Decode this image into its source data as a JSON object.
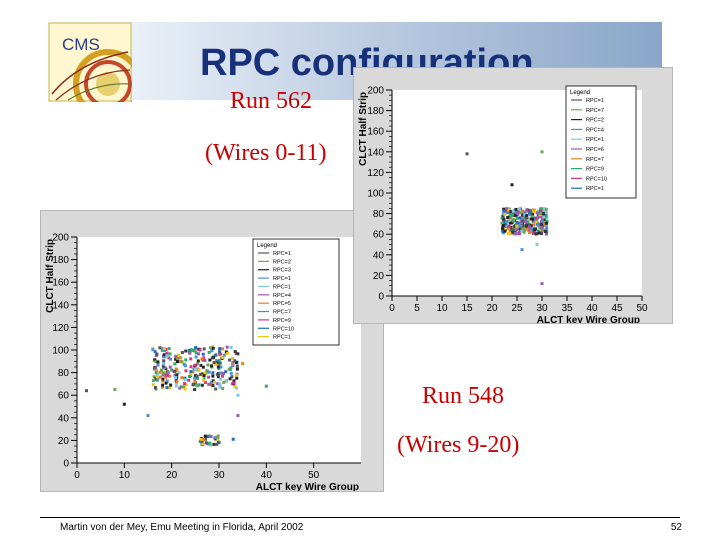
{
  "slide": {
    "title": "RPC configuration",
    "logo_text": "CMS",
    "run_a": {
      "label": "Run 562",
      "wires": "(Wires 0-11)"
    },
    "run_b": {
      "label": "Run 548",
      "wires": "(Wires 9-20)"
    }
  },
  "footer": {
    "text": "Martin von der Mey, Emu Meeting in Florida, April 2002",
    "page": "52"
  },
  "colors": {
    "title": "#17307a",
    "run_text": "#cc0000",
    "plot_bg": "#d9d9d9"
  },
  "chart_data": [
    {
      "type": "scatter",
      "xlabel": "ALCT key Wire Group",
      "ylabel": "CLCT Half Strip",
      "xlim": [
        0,
        50
      ],
      "ylim": [
        0,
        200
      ],
      "x_ticks": [
        "0",
        "5",
        "10",
        "15",
        "20",
        "25",
        "30",
        "35",
        "40",
        "45",
        "50"
      ],
      "y_ticks": [
        "0",
        "20",
        "40",
        "60",
        "80",
        "100",
        "120",
        "140",
        "160",
        "180",
        "200"
      ],
      "legend_title": "Legend",
      "legend": [
        "RPC=1",
        "RPC=7",
        "RPC=2",
        "RPC=4",
        "RPC=1",
        "RPC=6",
        "RPC=7",
        "RPC=9",
        "RPC=10",
        "RPC=1"
      ],
      "clusters": [
        {
          "x": [
            22,
            31
          ],
          "y": [
            60,
            85
          ]
        }
      ],
      "outliers": [
        [
          15,
          138
        ],
        [
          30,
          140
        ],
        [
          24,
          108
        ],
        [
          26,
          45
        ],
        [
          29,
          50
        ],
        [
          30,
          12
        ]
      ]
    },
    {
      "type": "scatter",
      "xlabel": "ALCT key Wire Group",
      "ylabel": "CLCT Half Strip",
      "xlim": [
        0,
        60
      ],
      "ylim": [
        0,
        200
      ],
      "x_ticks": [
        "0",
        "10",
        "20",
        "30",
        "40",
        "50"
      ],
      "y_ticks": [
        "0",
        "20",
        "40",
        "60",
        "80",
        "100",
        "120",
        "140",
        "160",
        "180",
        "200"
      ],
      "legend_title": "Legend",
      "legend": [
        "RPC=1",
        "RPC=2",
        "RPC=3",
        "RPC=1",
        "RPC=1",
        "RPC=4",
        "RPC=5",
        "RPC=7",
        "RPC=9",
        "RPC=10",
        "RPC=1"
      ],
      "clusters": [
        {
          "x": [
            16,
            34
          ],
          "y": [
            65,
            103
          ]
        },
        {
          "x": [
            26,
            30
          ],
          "y": [
            16,
            24
          ]
        }
      ],
      "outliers": [
        [
          2,
          64
        ],
        [
          8,
          65
        ],
        [
          10,
          52
        ],
        [
          15,
          42
        ],
        [
          34,
          60
        ],
        [
          34,
          42
        ],
        [
          35,
          88
        ],
        [
          40,
          68
        ],
        [
          26,
          100
        ],
        [
          33,
          21
        ]
      ]
    }
  ]
}
